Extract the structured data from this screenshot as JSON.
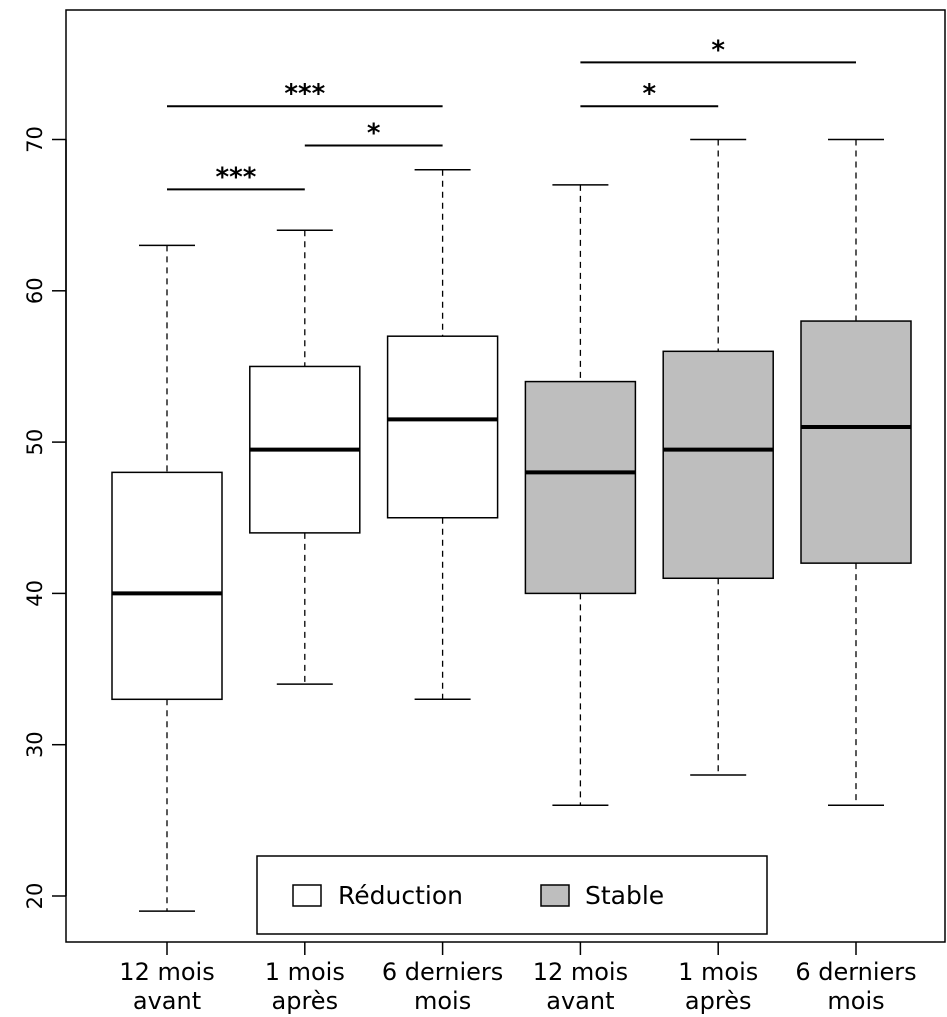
{
  "chart_data": {
    "type": "boxplot",
    "title": "",
    "xlabel": "",
    "ylabel": "",
    "ylim": [
      17,
      78
    ],
    "yticks": [
      20,
      30,
      40,
      50,
      60,
      70
    ],
    "grid": false,
    "colors": {
      "Réduction": "#ffffff",
      "Stable": "#bebebe",
      "outline": "#000000"
    },
    "legend": {
      "position": "bottom-center",
      "entries": [
        {
          "label": "Réduction",
          "color": "#ffffff"
        },
        {
          "label": "Stable",
          "color": "#bebebe"
        }
      ]
    },
    "boxes": [
      {
        "label_lines": [
          "12 mois",
          "avant"
        ],
        "group": "Réduction",
        "whisker_low": 19,
        "q1": 33,
        "median": 40,
        "q3": 48,
        "whisker_high": 63
      },
      {
        "label_lines": [
          "1 mois",
          "après"
        ],
        "group": "Réduction",
        "whisker_low": 34,
        "q1": 44,
        "median": 49.5,
        "q3": 55,
        "whisker_high": 64
      },
      {
        "label_lines": [
          "6 derniers",
          "mois"
        ],
        "group": "Réduction",
        "whisker_low": 33,
        "q1": 45,
        "median": 51.5,
        "q3": 57,
        "whisker_high": 68
      },
      {
        "label_lines": [
          "12 mois",
          "avant"
        ],
        "group": "Stable",
        "whisker_low": 26,
        "q1": 40,
        "median": 48,
        "q3": 54,
        "whisker_high": 67
      },
      {
        "label_lines": [
          "1 mois",
          "après"
        ],
        "group": "Stable",
        "whisker_low": 28,
        "q1": 41,
        "median": 49.5,
        "q3": 56,
        "whisker_high": 70
      },
      {
        "label_lines": [
          "6 derniers",
          "mois"
        ],
        "group": "Stable",
        "whisker_low": 26,
        "q1": 42,
        "median": 51,
        "q3": 58,
        "whisker_high": 70
      }
    ],
    "significance": [
      {
        "from": 0,
        "to": 1,
        "label": "***",
        "y": 66.7
      },
      {
        "from": 0,
        "to": 2,
        "label": "***",
        "y": 72.2
      },
      {
        "from": 1,
        "to": 2,
        "label": "*",
        "y": 69.6
      },
      {
        "from": 3,
        "to": 4,
        "label": "*",
        "y": 72.2
      },
      {
        "from": 3,
        "to": 5,
        "label": "*",
        "y": 75.1
      }
    ]
  }
}
